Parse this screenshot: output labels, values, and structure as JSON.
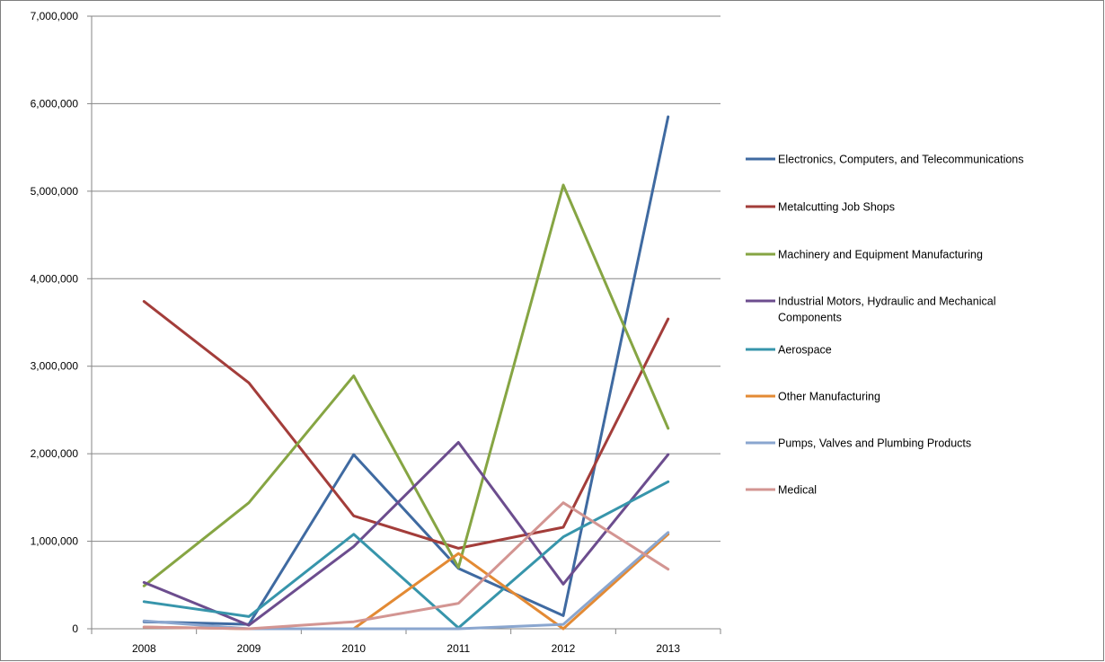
{
  "chart_data": {
    "type": "line",
    "title": "",
    "xlabel": "",
    "ylabel": "",
    "categories": [
      "2008",
      "2009",
      "2010",
      "2011",
      "2012",
      "2013"
    ],
    "ylim": [
      0,
      7000000
    ],
    "yticks": [
      0,
      1000000,
      2000000,
      3000000,
      4000000,
      5000000,
      6000000,
      7000000
    ],
    "ytick_labels": [
      "0",
      "1,000,000",
      "2,000,000",
      "3,000,000",
      "4,000,000",
      "5,000,000",
      "6,000,000",
      "7,000,000"
    ],
    "grid": true,
    "legend_position": "right",
    "series": [
      {
        "name": "Electronics, Computers, and Telecommunications",
        "color": "#3f6aa1",
        "values": [
          80000,
          50000,
          1990000,
          690000,
          150000,
          5850000
        ]
      },
      {
        "name": "Metalcutting Job Shops",
        "color": "#a33d3a",
        "values": [
          3740000,
          2810000,
          1290000,
          920000,
          1160000,
          3540000
        ]
      },
      {
        "name": "Machinery and Equipment Manufacturing",
        "color": "#86a543",
        "values": [
          490000,
          1440000,
          2890000,
          700000,
          5070000,
          2290000
        ]
      },
      {
        "name": "Industrial Motors, Hydraulic and Mechanical Components",
        "color": "#6c4d8e",
        "values": [
          530000,
          40000,
          940000,
          2130000,
          510000,
          1990000
        ]
      },
      {
        "name": "Aerospace",
        "color": "#3795ab",
        "values": [
          310000,
          140000,
          1080000,
          10000,
          1050000,
          1680000
        ]
      },
      {
        "name": "Other Manufacturing",
        "color": "#e38a34",
        "values": [
          20000,
          0,
          0,
          860000,
          0,
          1080000
        ]
      },
      {
        "name": "Pumps, Valves and Plumbing Products",
        "color": "#8aa6cf",
        "values": [
          90000,
          0,
          0,
          0,
          50000,
          1100000
        ]
      },
      {
        "name": "Medical",
        "color": "#d39592",
        "values": [
          20000,
          0,
          80000,
          290000,
          1440000,
          680000
        ]
      }
    ]
  }
}
